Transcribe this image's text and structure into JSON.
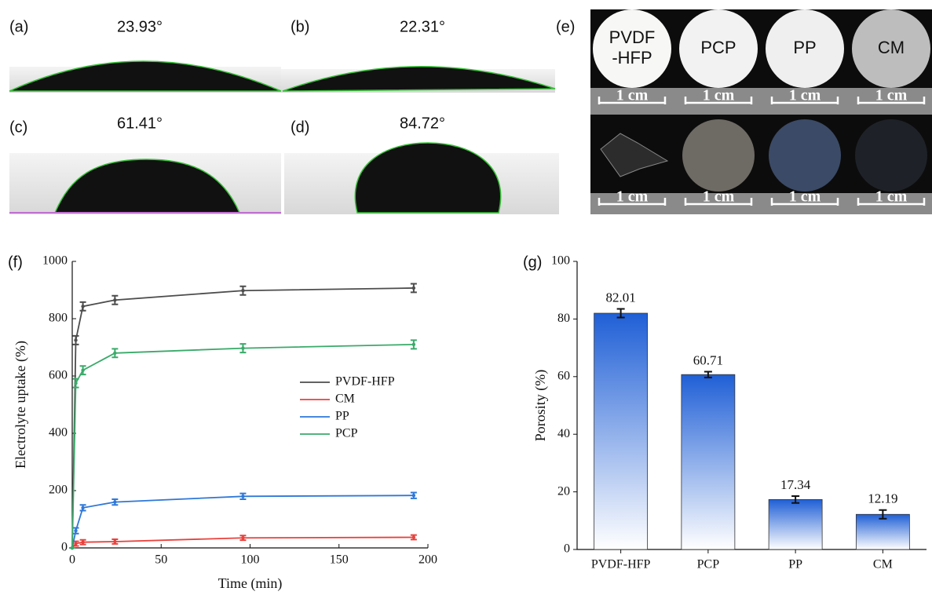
{
  "contact_angle": {
    "panels": [
      {
        "label": "(a)",
        "angle": "23.93°"
      },
      {
        "label": "(b)",
        "angle": "22.31°"
      },
      {
        "label": "(c)",
        "angle": "61.41°"
      },
      {
        "label": "(d)",
        "angle": "84.72°"
      }
    ]
  },
  "photos": {
    "label": "(e)",
    "samples": [
      [
        "PVDF",
        "-HFP"
      ],
      [
        "PCP"
      ],
      [
        "PP"
      ],
      [
        "CM"
      ]
    ],
    "scale_bar": "1 cm"
  },
  "chart_data": [
    {
      "type": "line",
      "panel": "(f)",
      "x_label": "Time (min)",
      "y_label": "Electrolyte uptake (%)",
      "x": [
        0,
        2,
        6,
        24,
        96,
        192
      ],
      "xlim": [
        0,
        200
      ],
      "xticks": [
        0,
        50,
        100,
        150,
        200
      ],
      "ylim": [
        0,
        1000
      ],
      "yticks": [
        0,
        200,
        400,
        600,
        800,
        1000
      ],
      "legend": "center-right",
      "series": [
        {
          "name": "PVDF-HFP",
          "color": "#4d4d4d",
          "values": [
            0,
            725,
            843,
            865,
            898,
            907
          ],
          "errors": [
            0,
            15,
            15,
            15,
            15,
            15
          ]
        },
        {
          "name": "CM",
          "color": "#e8413c",
          "values": [
            0,
            15,
            20,
            22,
            35,
            37
          ],
          "errors": [
            0,
            8,
            8,
            8,
            8,
            8
          ]
        },
        {
          "name": "PP",
          "color": "#2f78d8",
          "values": [
            0,
            60,
            140,
            160,
            180,
            183
          ],
          "errors": [
            0,
            10,
            10,
            10,
            10,
            10
          ]
        },
        {
          "name": "PCP",
          "color": "#3aaa6a",
          "values": [
            0,
            575,
            620,
            680,
            697,
            710
          ],
          "errors": [
            0,
            15,
            15,
            15,
            15,
            15
          ]
        }
      ]
    },
    {
      "type": "bar",
      "panel": "(g)",
      "y_label": "Porosity (%)",
      "categories": [
        "PVDF-HFP",
        "PCP",
        "PP",
        "CM"
      ],
      "values": [
        82.01,
        60.71,
        17.34,
        12.19
      ],
      "errors": [
        1.5,
        1.0,
        1.2,
        1.5
      ],
      "color": "#1f5fd6",
      "ylim": [
        0,
        100
      ],
      "yticks": [
        0,
        20,
        40,
        60,
        80,
        100
      ]
    }
  ]
}
